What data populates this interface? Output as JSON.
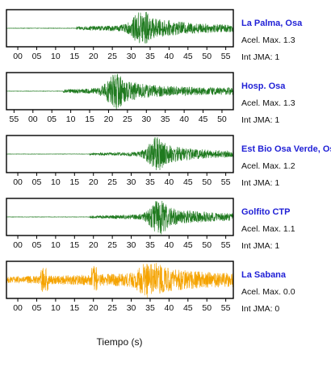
{
  "chart_data": {
    "type": "line",
    "x_unit": "s",
    "xlabel": "Tiempo (s)",
    "panels": [
      {
        "station": "La Palma, Osa",
        "accel_label": "Acel. Max. 1.3",
        "jma_label": "Int JMA: 1",
        "color": "#1f7a1f",
        "xlim": [
          -3,
          57
        ],
        "ticks": [
          "00",
          "05",
          "10",
          "15",
          "20",
          "25",
          "30",
          "35",
          "40",
          "45",
          "50",
          "55"
        ],
        "tick_values": [
          0,
          5,
          10,
          15,
          20,
          25,
          30,
          35,
          40,
          45,
          50,
          55
        ],
        "signal_onset": 15.5,
        "peak_time": 33,
        "coda_level": 0.18
      },
      {
        "station": "Hosp. Osa",
        "accel_label": "Acel. Max. 1.3",
        "jma_label": "Int JMA: 1",
        "color": "#1f7a1f",
        "xlim": [
          -57,
          3
        ],
        "ticks": [
          "55",
          "00",
          "05",
          "10",
          "15",
          "20",
          "25",
          "30",
          "35",
          "40",
          "45",
          "50"
        ],
        "tick_values": [
          -55,
          -50,
          -45,
          -40,
          -35,
          -30,
          -25,
          -20,
          -15,
          -10,
          -5,
          0
        ],
        "signal_onset": -42,
        "peak_time": -28,
        "coda_level": 0.18
      },
      {
        "station": "Est Bio Osa Verde, Osa",
        "accel_label": "Acel. Max. 1.2",
        "jma_label": "Int JMA: 1",
        "color": "#1f7a1f",
        "xlim": [
          -3,
          57
        ],
        "ticks": [
          "00",
          "05",
          "10",
          "15",
          "20",
          "25",
          "30",
          "35",
          "40",
          "45",
          "50",
          "55"
        ],
        "tick_values": [
          0,
          5,
          10,
          15,
          20,
          25,
          30,
          35,
          40,
          45,
          50,
          55
        ],
        "signal_onset": 19,
        "peak_time": 37,
        "coda_level": 0.12
      },
      {
        "station": "Golfito CTP",
        "accel_label": "Acel. Max. 1.1",
        "jma_label": "Int JMA: 1",
        "color": "#1f7a1f",
        "xlim": [
          -3,
          57
        ],
        "ticks": [
          "00",
          "05",
          "10",
          "15",
          "20",
          "25",
          "30",
          "35",
          "40",
          "45",
          "50",
          "55"
        ],
        "tick_values": [
          0,
          5,
          10,
          15,
          20,
          25,
          30,
          35,
          40,
          45,
          50,
          55
        ],
        "signal_onset": 19,
        "peak_time": 37.5,
        "coda_level": 0.14
      },
      {
        "station": "La Sabana",
        "accel_label": "Acel. Max. 0.0",
        "jma_label": "Int JMA: 0",
        "color": "#f5a300",
        "xlim": [
          -3,
          57
        ],
        "ticks": [
          "00",
          "05",
          "10",
          "15",
          "20",
          "25",
          "30",
          "35",
          "40",
          "45",
          "50",
          "55"
        ],
        "tick_values": [
          0,
          5,
          10,
          15,
          20,
          25,
          30,
          35,
          40,
          45,
          50,
          55
        ],
        "signal_onset": -3,
        "peak_time": 35,
        "coda_level": 0.35
      }
    ]
  }
}
